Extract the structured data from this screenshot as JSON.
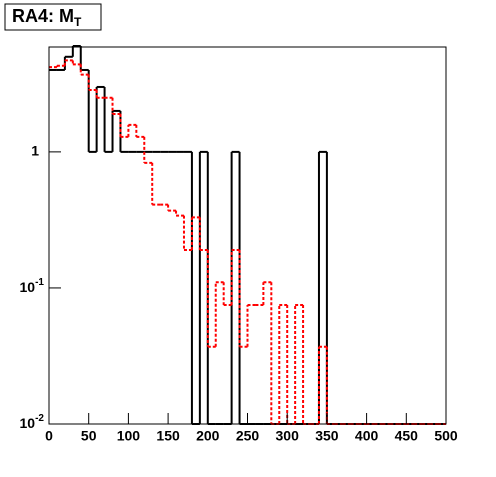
{
  "chart_data": {
    "type": "histogram",
    "title": "RA4: M",
    "title_subscript": "T",
    "bins": [
      0,
      10,
      20,
      30,
      40,
      50,
      60,
      70,
      80,
      90,
      100,
      110,
      120,
      130,
      140,
      150,
      160,
      170,
      180,
      190,
      200,
      210,
      220,
      230,
      240,
      250,
      260,
      270,
      280,
      290,
      300,
      310,
      320,
      330,
      340,
      350,
      360,
      370,
      380,
      390,
      400,
      410,
      420,
      430,
      440,
      450,
      460,
      470,
      480,
      490,
      500
    ],
    "series": [
      {
        "color": "#000000",
        "dash": "solid",
        "values": [
          4,
          4,
          5,
          6,
          4,
          1,
          3,
          1,
          2,
          1,
          1,
          1,
          1,
          1,
          1,
          1,
          1,
          1,
          0,
          1,
          0,
          0,
          0,
          1,
          0,
          0,
          0,
          0,
          0,
          0,
          0,
          0,
          0,
          0,
          1,
          0,
          0,
          0,
          0,
          0,
          0,
          0,
          0,
          0,
          0,
          0,
          0,
          0,
          0,
          0
        ]
      },
      {
        "color": "#ff0000",
        "dash": "dashed",
        "values": [
          4.2,
          4.3,
          4.7,
          4.4,
          3.7,
          2.85,
          2.5,
          2.5,
          1.9,
          1.29,
          1.58,
          1.29,
          0.83,
          0.41,
          0.41,
          0.37,
          0.34,
          0.19,
          0.33,
          0.19,
          0.037,
          0.11,
          0.075,
          0.19,
          0.037,
          0.075,
          0.075,
          0.11,
          0,
          0.075,
          0,
          0.075,
          0,
          0,
          0.037,
          0,
          0,
          0,
          0,
          0,
          0,
          0,
          0,
          0,
          0,
          0,
          0,
          0,
          0,
          0
        ]
      }
    ],
    "xlim": [
      0,
      500
    ],
    "xticks": [
      0,
      50,
      100,
      150,
      200,
      250,
      300,
      350,
      400,
      450,
      500
    ],
    "ylim": [
      0.01,
      5.9
    ],
    "log_y": true,
    "yticks": [
      {
        "value": 0.01,
        "label": "10",
        "exponent": "-2"
      },
      {
        "value": 0.1,
        "label": "10",
        "exponent": "-1"
      },
      1
    ]
  }
}
